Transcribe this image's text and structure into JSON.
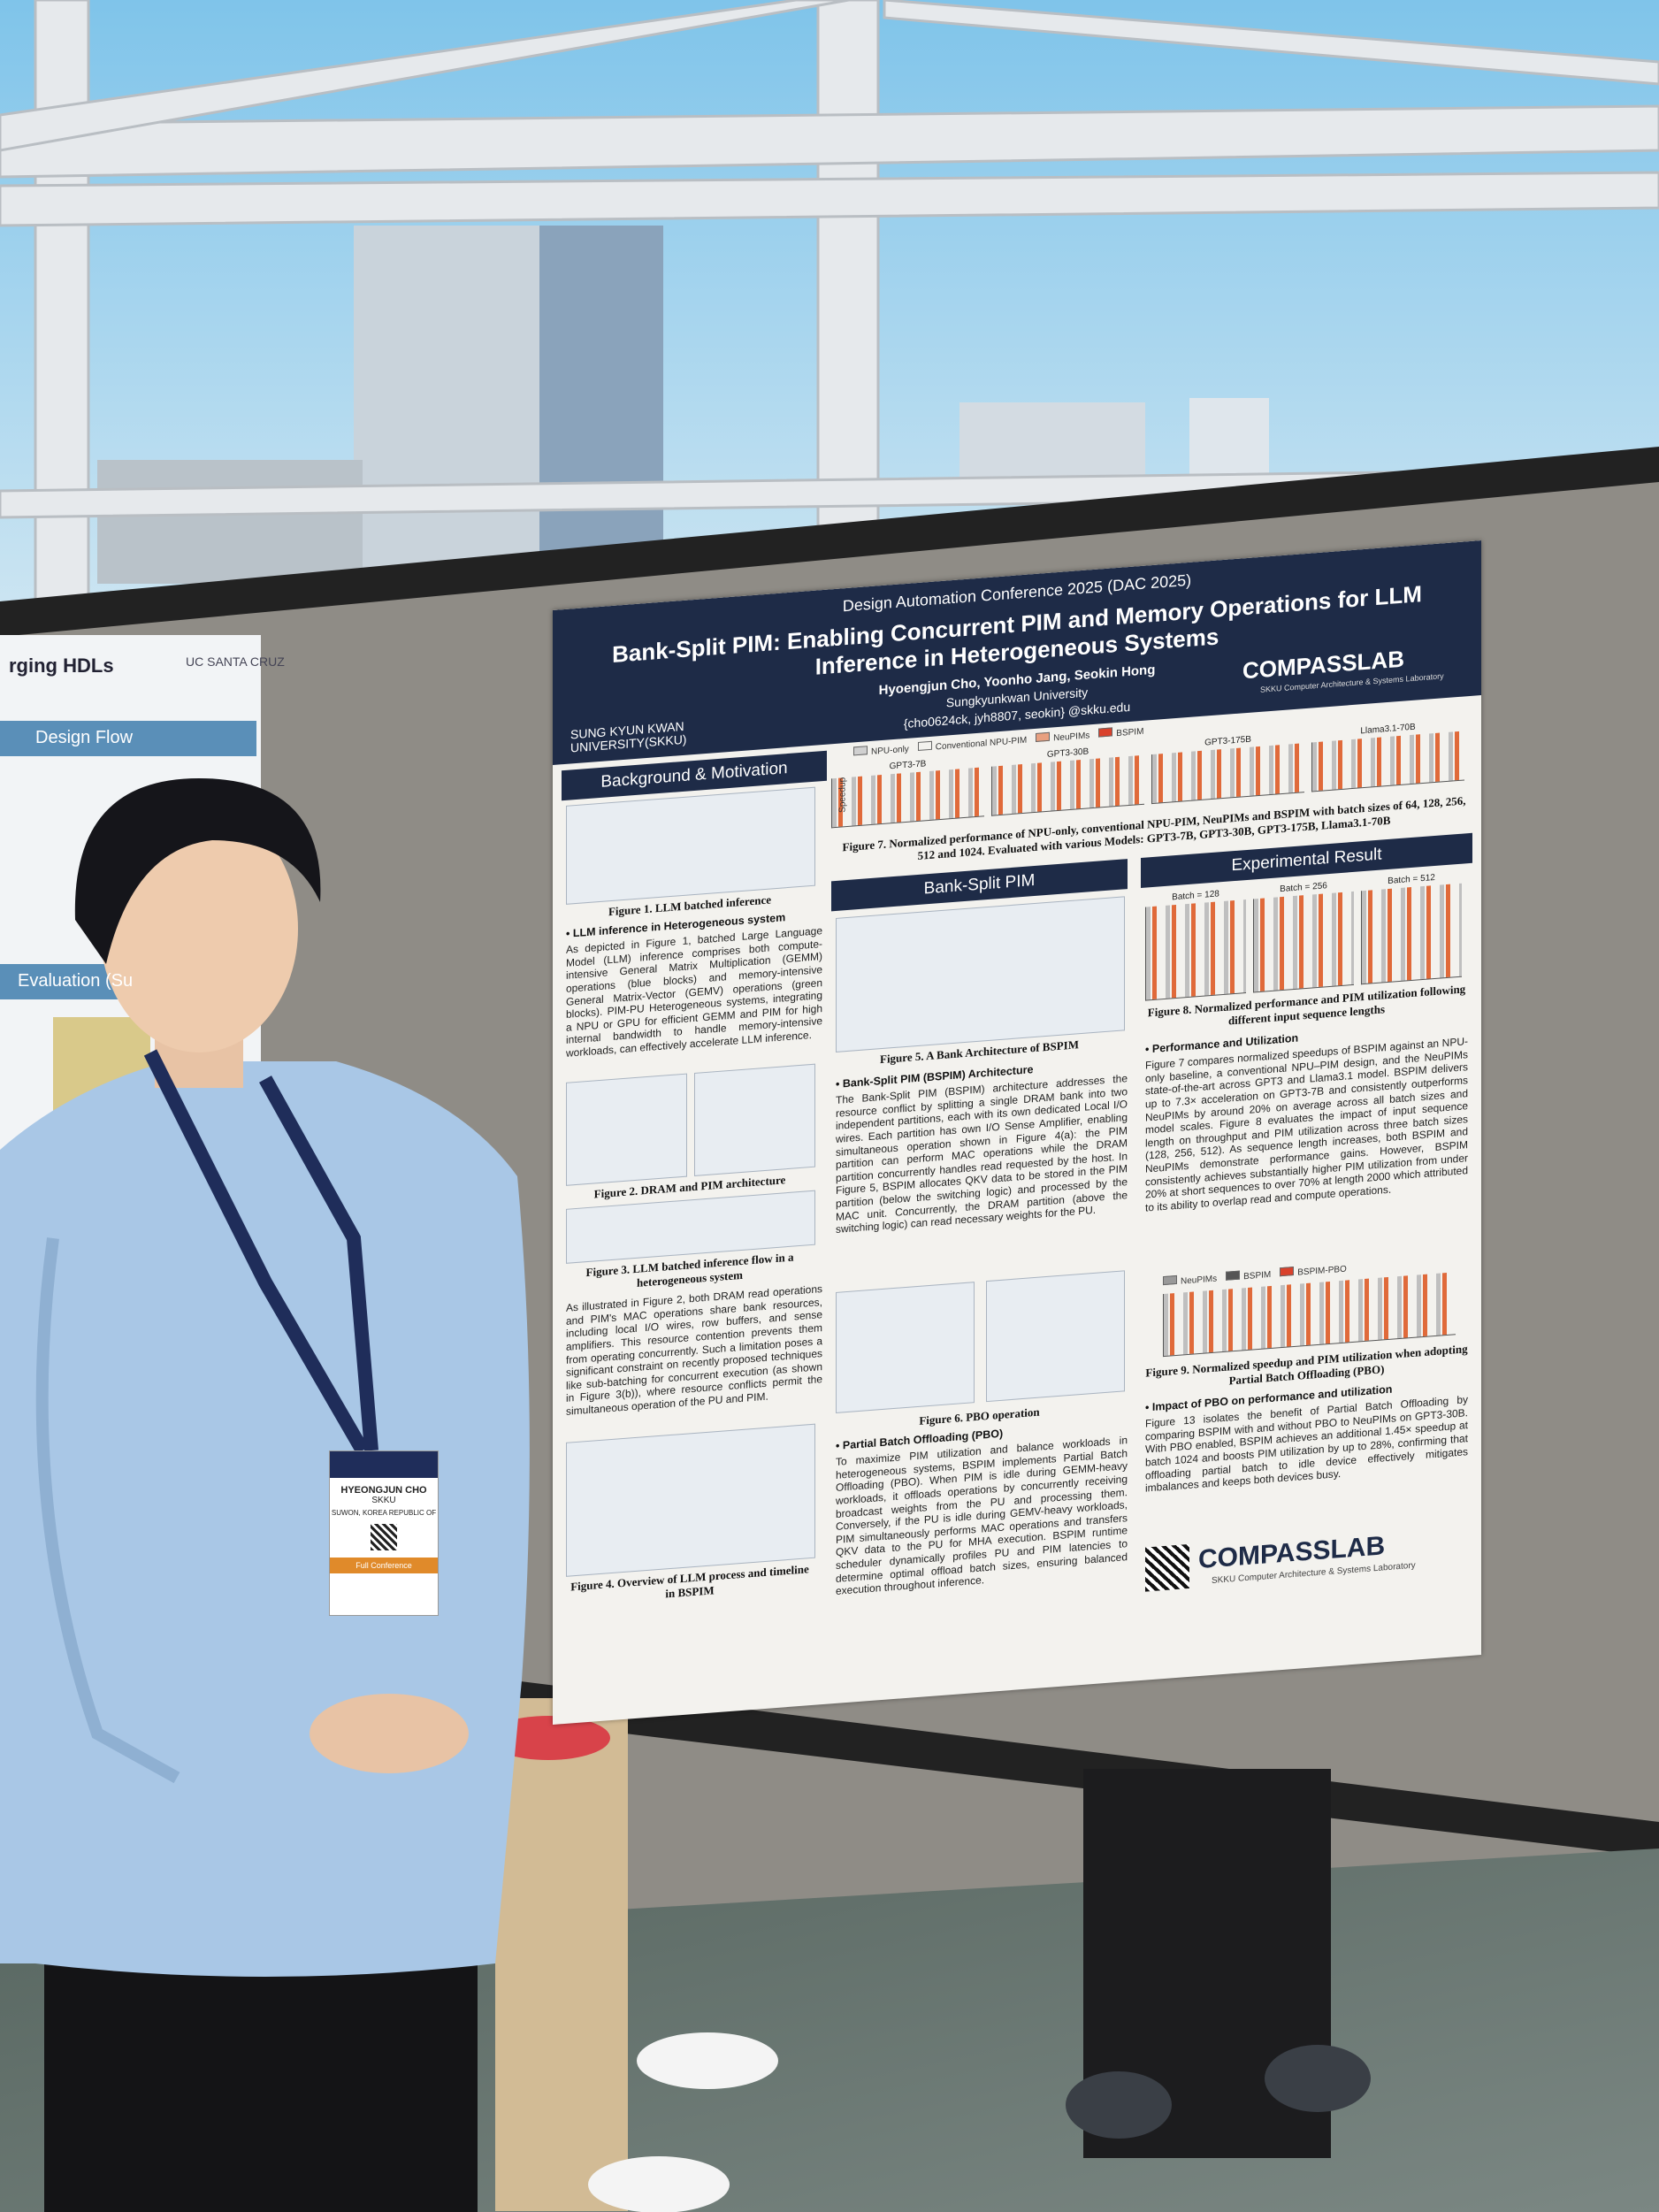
{
  "neighbor_poster": {
    "title_fragment": "rging HDLs",
    "university": "UC SANTA CRUZ",
    "section_1": "Design Flow",
    "section_2": "Evaluation (Su"
  },
  "badge": {
    "name": "HYEONGJUN CHO",
    "org": "SKKU",
    "location": "SUWON, KOREA REPUBLIC OF",
    "ribbon": "Full Conference"
  },
  "poster": {
    "conference": "Design Automation Conference 2025 (DAC 2025)",
    "title": "Bank-Split PIM: Enabling Concurrent PIM and Memory Operations for LLM Inference in Heterogeneous Systems",
    "authors": "Hyoengjun Cho, Yoonho Jang, Seokin Hong",
    "affiliation": "Sungkyunkwan University",
    "email": "{cho0624ck, jyh8807, seokin} @skku.edu",
    "university_logo": "SUNG KYUN KWAN UNIVERSITY(SKKU)",
    "lab": "COMPASSLAB",
    "lab_full": "SKKU Computer Architecture & Systems Laboratory",
    "sections": {
      "background": "Background & Motivation",
      "bspim": "Bank-Split PIM",
      "results": "Experimental Result"
    },
    "figure7": {
      "legend": [
        "NPU-only",
        "Conventional NPU-PIM",
        "NeuPIMs",
        "BSPIM"
      ],
      "panels": [
        "GPT3-7B",
        "GPT3-30B",
        "GPT3-175B",
        "Llama3.1-70B"
      ],
      "y_label": "Speedup",
      "caption": "Figure 7. Normalized performance of NPU-only, conventional NPU-PIM, NeuPIMs and BSPIM with batch sizes of 64, 128, 256, 512 and 1024. Evaluated with various Models: GPT3-7B, GPT3-30B, GPT3-175B, Llama3.1-70B"
    },
    "figure1_caption": "Figure 1. LLM batched inference",
    "heading_llm": "LLM inference in Heterogeneous system",
    "para_llm": "As depicted in Figure 1, batched Large Language Model (LLM) inference comprises both compute-intensive General Matrix Multiplication (GEMM) operations (blue blocks) and memory-intensive General Matrix-Vector (GEMV) operations (green blocks). PIM-PU Heterogeneous systems, integrating a NPU or GPU for efficient GEMM and PIM for high internal bandwidth to handle memory-intensive workloads, can effectively accelerate LLM inference.",
    "figure2_caption": "Figure 2. DRAM and PIM architecture",
    "figure3_caption": "Figure 3. LLM batched inference flow in a heterogeneous system",
    "para_conflict": "As illustrated in Figure 2, both DRAM read operations and PIM's MAC operations share bank resources, including local I/O wires, row buffers, and sense amplifiers. This resource contention prevents them from operating concurrently. Such a limitation poses a significant constraint on recently proposed techniques like sub-batching for concurrent execution (as shown in Figure 3(b)), where resource conflicts permit the simultaneous operation of the PU and PIM.",
    "figure4_caption": "Figure 4. Overview of LLM process and timeline in BSPIM",
    "figure5_caption": "Figure 5. A Bank Architecture of BSPIM",
    "heading_bspim": "Bank-Split PIM (BSPIM) Architecture",
    "para_bspim": "The Bank-Split PIM (BSPIM) architecture addresses the resource conflict by splitting a single DRAM bank into two independent partitions, each with its own dedicated Local I/O wires. Each partition has own I/O Sense Amplifier, enabling simultaneous operation shown in Figure 4(a): the PIM partition can perform MAC operations while the DRAM partition concurrently handles read requested by the host. In Figure 5, BSPIM allocates QKV data to be stored in the PIM partition (below the switching logic) and processed by the MAC unit. Concurrently, the DRAM partition (above the switching logic) can read necessary weights for the PU.",
    "figure6_caption": "Figure 6. PBO operation",
    "heading_pbo": "Partial Batch Offloading (PBO)",
    "para_pbo": "To maximize PIM utilization and balance workloads in heterogeneous systems, BSPIM implements Partial Batch Offloading (PBO). When PIM is idle during GEMM-heavy workloads, it offloads operations by concurrently receiving broadcast weights from the PU and processing them. Conversely, if the PU is idle during GEMV-heavy workloads, PIM simultaneously performs MAC operations and transfers QKV data to the PU for MHA execution. BSPIM runtime scheduler dynamically profiles PU and PIM latencies to determine optimal offload batch sizes, ensuring balanced execution throughout inference.",
    "figure8": {
      "panels": [
        "Batch = 128",
        "Batch = 256",
        "Batch = 512"
      ],
      "caption": "Figure 8. Normalized performance and PIM utilization following different input sequence lengths"
    },
    "heading_perf": "Performance and Utilization",
    "para_perf": "Figure 7 compares normalized speedups of BSPIM against an NPU-only baseline, a conventional NPU–PIM design, and the NeuPIMs state-of-the-art across GPT3 and Llama3.1 model. BSPIM delivers up to 7.3× acceleration on GPT3-7B and consistently outperforms NeuPIMs by around 20% on average across all batch sizes and model scales. Figure 8 evaluates the impact of input sequence length on throughput and PIM utilization across three batch sizes (128, 256, 512). As sequence length increases, both BSPIM and NeuPIMs demonstrate performance gains. However, BSPIM consistently achieves substantially higher PIM utilization from under 20% at short sequences to over 70% at length 2000 which attributed to its ability to overlap read and compute operations.",
    "figure9": {
      "legend": [
        "NeuPIMs",
        "BSPIM",
        "BSPIM-PBO"
      ],
      "caption": "Figure 9. Normalized speedup and PIM utilization when adopting Partial Batch Offloading (PBO)"
    },
    "heading_pbo_impact": "Impact of PBO on performance and utilization",
    "para_pbo_impact": "Figure 13 isolates the benefit of Partial Batch Offloading by comparing BSPIM with and without PBO to NeuPIMs on GPT3-30B. With PBO enabled, BSPIM achieves an additional 1.45× speedup at batch 1024 and boosts PIM utilization by up to 28%, confirming that offloading partial batch to idle device effectively mitigates imbalances and keeps both devices busy."
  }
}
